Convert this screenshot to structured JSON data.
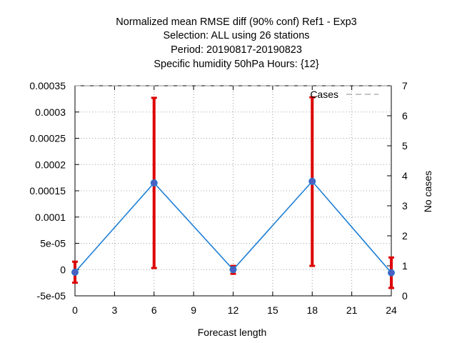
{
  "chart_data": {
    "type": "line",
    "title_lines": [
      "Normalized mean RMSE diff (90% conf) Ref1 - Exp3",
      "Selection: ALL using    26 stations",
      "Period: 20190817-20190823",
      "Specific humidity 50hPa   Hours: {12}"
    ],
    "xlabel": "Forecast length",
    "ylabel": "",
    "y2label": "No cases",
    "xlim": [
      0,
      24
    ],
    "ylim": [
      -5e-05,
      0.00035
    ],
    "y2lim": [
      0,
      7
    ],
    "x_ticks": [
      "0",
      "3",
      "6",
      "9",
      "12",
      "15",
      "18",
      "21",
      "24"
    ],
    "y_ticks": [
      "0.00035",
      "0.0003",
      "0.00025",
      "0.0002",
      "0.00015",
      "0.0001",
      "5e-05",
      "0",
      "-5e-05"
    ],
    "y2_ticks": [
      "7",
      "6",
      "5",
      "4",
      "3",
      "2",
      "1",
      "0"
    ],
    "grid": true,
    "legend": {
      "label": "Cases",
      "placement": "top-right"
    },
    "series": [
      {
        "x": [
          0,
          6,
          12,
          18,
          24
        ],
        "values": [
          -5e-06,
          0.000165,
          0.0,
          0.000168,
          -6e-06
        ],
        "error_low": [
          -2.5e-05,
          3e-06,
          -8e-06,
          7e-06,
          -3.5e-05
        ],
        "error_high": [
          1.5e-05,
          0.000327,
          7e-06,
          0.000328,
          2.3e-05
        ],
        "color": "#1f7fd6",
        "marker_color": "#4a5fc1",
        "error_color": "#dd0000"
      }
    ],
    "cases": {
      "x": [
        0,
        24
      ],
      "values": [
        7,
        7
      ],
      "color": "#888888"
    }
  }
}
